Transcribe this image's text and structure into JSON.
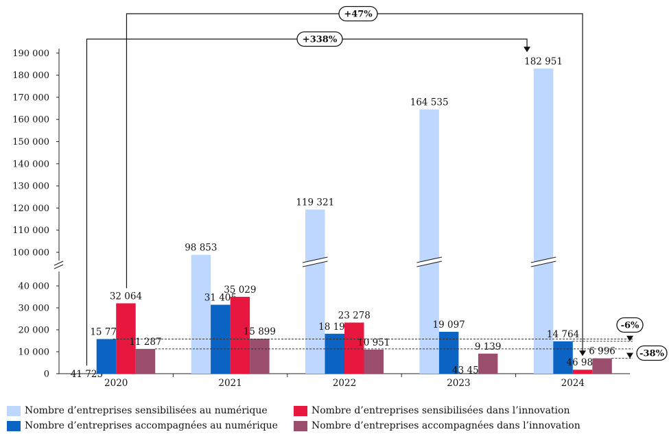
{
  "chart_data": {
    "type": "bar",
    "categories": [
      "2020",
      "2021",
      "2022",
      "2023",
      "2024"
    ],
    "series": [
      {
        "name": "Nombre d’entreprises sensibilisées au numérique",
        "color": "#bdd7ff",
        "values": [
          41725,
          98853,
          119321,
          164535,
          182951
        ],
        "labels": [
          "41 725",
          "98 853",
          "119 321",
          "164 535",
          "182 951"
        ]
      },
      {
        "name": "Nombre d’entreprises accompagnées au numérique",
        "color": "#0b63c4",
        "values": [
          15779,
          31405,
          18196,
          19097,
          14764
        ],
        "labels": [
          "15 779",
          "31 405",
          "18 196",
          "19 097",
          "14 764"
        ]
      },
      {
        "name": "Nombre d’entreprises sensibilisées dans l’innovation",
        "color": "#e8173f",
        "values": [
          32064,
          35029,
          23278,
          43457,
          46983
        ],
        "labels": [
          "32 064",
          "35 029",
          "23 278",
          "43 457",
          "46 983"
        ]
      },
      {
        "name": "Nombre d’entreprises accompagnées dans l’innovation",
        "color": "#9b4d6e",
        "values": [
          11287,
          15899,
          10951,
          9139,
          6996
        ],
        "labels": [
          "11 287",
          "15 899",
          "10 951",
          "9 139",
          "6 996"
        ]
      }
    ],
    "y_axis_break": {
      "lower_range": [
        0,
        40000
      ],
      "upper_range": [
        100000,
        190000
      ]
    },
    "yticks_lower": [
      "0",
      "10 000",
      "20 000",
      "30 000",
      "40 000"
    ],
    "yticks_upper": [
      "100 000",
      "110 000",
      "120 000",
      "130 000",
      "140 000",
      "150 000",
      "160 000",
      "170 000",
      "180 000",
      "190 000"
    ],
    "annotations": [
      {
        "text": "+47%",
        "from": "Nombre d’entreprises sensibilisées dans l’innovation 2020",
        "to": "Nombre d’entreprises sensibilisées dans l’innovation 2024"
      },
      {
        "text": "+338%",
        "from": "Nombre d’entreprises sensibilisées au numérique 2020",
        "to": "Nombre d’entreprises sensibilisées au numérique 2024"
      },
      {
        "text": "-6%",
        "from": "Nombre d’entreprises accompagnées au numérique 2020",
        "to": "Nombre d’entreprises accompagnées au numérique 2024"
      },
      {
        "text": "-38%",
        "from": "Nombre d’entreprises accompagnées dans l’innovation 2020",
        "to": "Nombre d’entreprises accompagnées dans l’innovation 2024"
      }
    ],
    "legend_position": "bottom",
    "grid": false,
    "title": "",
    "xlabel": "",
    "ylabel": ""
  }
}
